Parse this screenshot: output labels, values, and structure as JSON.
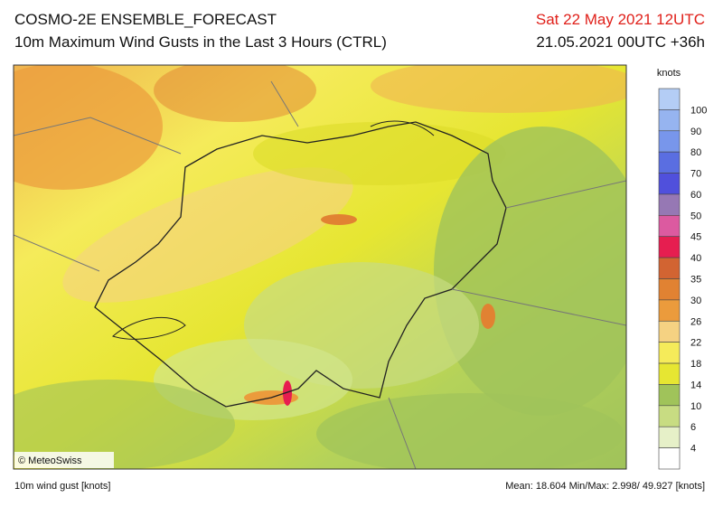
{
  "header": {
    "title": "COSMO-2E ENSEMBLE_FORECAST",
    "subtitle": "10m Maximum Wind Gusts in the Last 3 Hours (CTRL)",
    "valid_time": "Sat 22 May 2021 12UTC",
    "run_time": "21.05.2021 00UTC +36h"
  },
  "map": {
    "credit": "© MeteoSwiss"
  },
  "legend": {
    "title": "knots",
    "labels": [
      "100",
      "90",
      "80",
      "70",
      "60",
      "50",
      "45",
      "40",
      "35",
      "30",
      "26",
      "22",
      "18",
      "14",
      "10",
      "6",
      "4"
    ],
    "colors": [
      "#b4cdf5",
      "#96b4f0",
      "#7896eb",
      "#5a6ee1",
      "#5050dc",
      "#9678b4",
      "#dc5aa0",
      "#e61e50",
      "#d26432",
      "#e18232",
      "#eb9b3c",
      "#f5d282",
      "#f5eb5a",
      "#e6e632",
      "#a0c35a",
      "#c8dc82",
      "#e6f0c8",
      "#ffffff"
    ]
  },
  "footer": {
    "field": "10m wind gust [knots]",
    "stats": "Mean: 18.604 Min/Max: 2.998/ 49.927 [knots]"
  }
}
